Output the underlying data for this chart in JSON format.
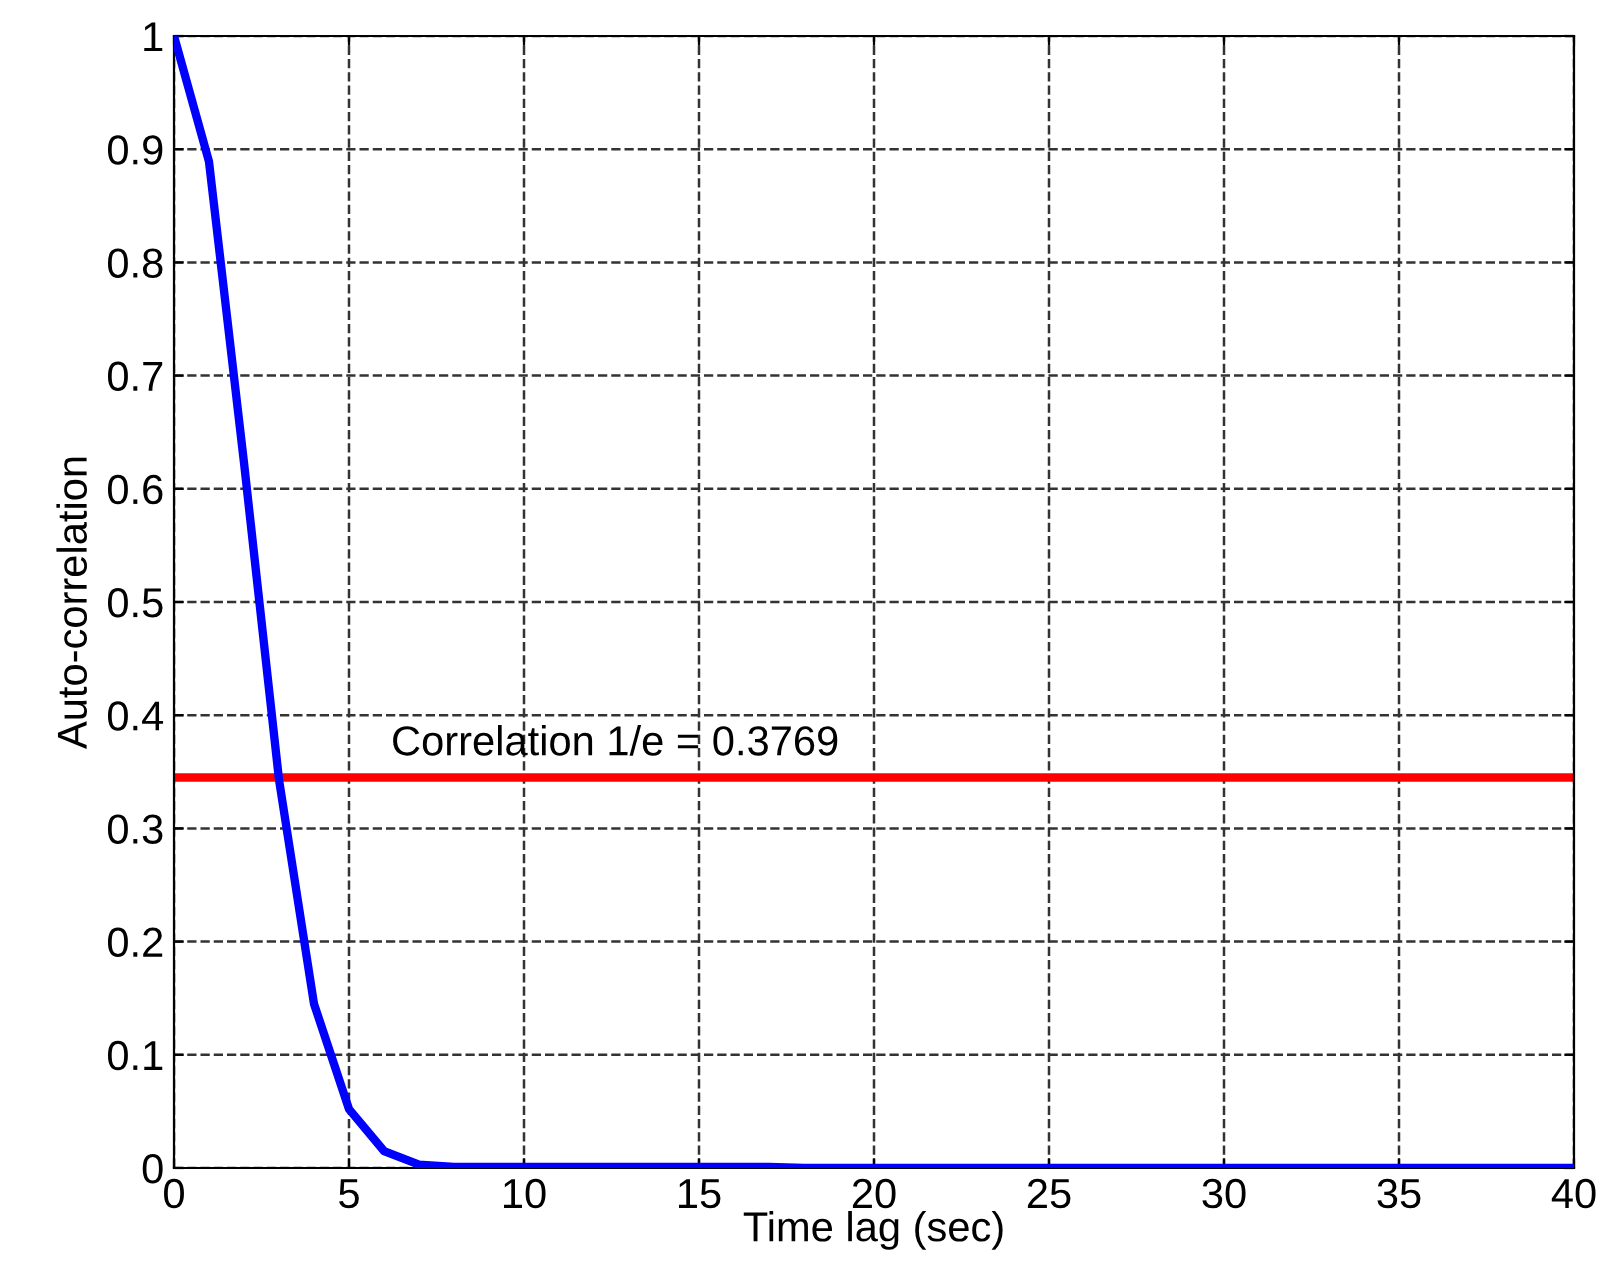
{
  "chart_data": {
    "type": "line",
    "xlabel": "Time lag (sec)",
    "ylabel": "Auto-correlation",
    "x": [
      0,
      1,
      2,
      3,
      4,
      5,
      6,
      7,
      8,
      10,
      17,
      18,
      40
    ],
    "series": [
      {
        "color": "#0000ff",
        "values": [
          1,
          0.889,
          0.623,
          0.343,
          0.145,
          0.052,
          0.015,
          0.003,
          0.001,
          0.001,
          0.001,
          0,
          0
        ]
      }
    ],
    "xlim": [
      0,
      40
    ],
    "xticks": [
      0,
      5,
      10,
      15,
      20,
      25,
      30,
      35,
      40
    ],
    "ylim": [
      0,
      1
    ],
    "yticks": [
      0,
      0.1,
      0.2,
      0.3,
      0.4,
      0.5,
      0.6,
      0.7,
      0.8,
      0.9,
      1
    ],
    "ref_lines": [
      {
        "axis": "y",
        "value": 0.345,
        "color": "#ff0000"
      }
    ],
    "annotations": [
      "Correlation 1/e = 0.3769"
    ],
    "grid": true,
    "line_style": "solid",
    "marker": "none"
  }
}
